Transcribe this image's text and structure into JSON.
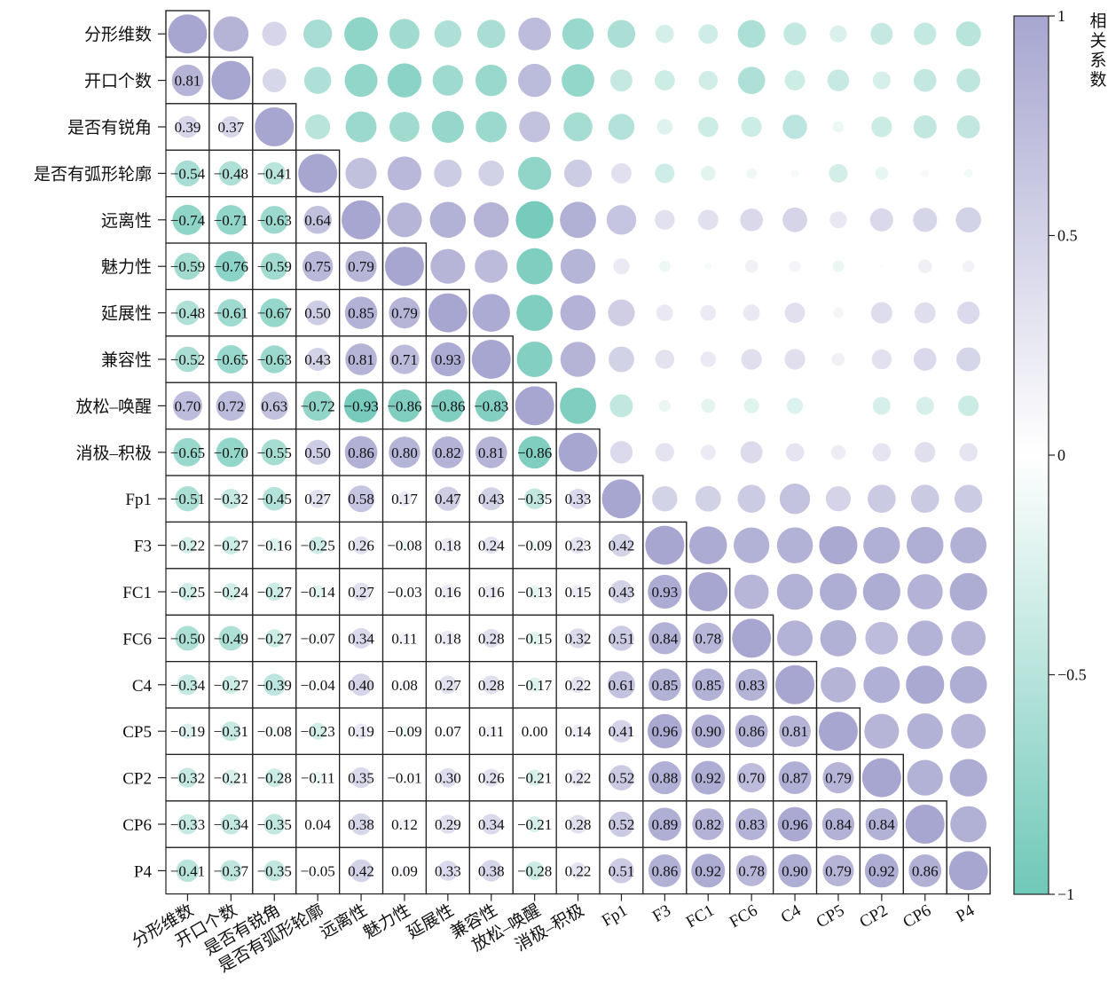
{
  "chart_data": {
    "type": "heatmap",
    "variables": [
      "分形维数",
      "开口个数",
      "是否有锐角",
      "是否有弧形轮廓",
      "远离性",
      "魅力性",
      "延展性",
      "兼容性",
      "放松–唤醒",
      "消极–积极",
      "Fp1",
      "F3",
      "FC1",
      "FC6",
      "C4",
      "CP5",
      "CP2",
      "CP6",
      "P4"
    ],
    "lower_labels": [
      [],
      [
        "0.81"
      ],
      [
        "0.39",
        "0.37"
      ],
      [
        "−0.54",
        "−0.48",
        "−0.41"
      ],
      [
        "−0.74",
        "−0.71",
        "−0.63",
        "0.64"
      ],
      [
        "−0.59",
        "−0.76",
        "−0.59",
        "0.75",
        "0.79"
      ],
      [
        "−0.48",
        "−0.61",
        "−0.67",
        "0.50",
        "0.85",
        "0.79"
      ],
      [
        "−0.52",
        "−0.65",
        "−0.63",
        "0.43",
        "0.81",
        "0.71",
        "0.93"
      ],
      [
        "0.70",
        "0.72",
        "0.63",
        "−0.72",
        "−0.93",
        "−0.86",
        "−0.86",
        "−0.83"
      ],
      [
        "−0.65",
        "−0.70",
        "−0.55",
        "0.50",
        "0.86",
        "0.80",
        "0.82",
        "0.81",
        "−0.86"
      ],
      [
        "−0.51",
        "−0.32",
        "−0.45",
        "0.27",
        "0.58",
        "0.17",
        "0.47",
        "0.43",
        "−0.35",
        "0.33"
      ],
      [
        "−0.22",
        "−0.27",
        "−0.16",
        "−0.25",
        "0.26",
        "−0.08",
        "0.18",
        "0.24",
        "−0.09",
        "0.23",
        "0.42"
      ],
      [
        "−0.25",
        "−0.24",
        "−0.27",
        "−0.14",
        "0.27",
        "−0.03",
        "0.16",
        "0.16",
        "−0.13",
        "0.15",
        "0.43",
        "0.93"
      ],
      [
        "−0.50",
        "−0.49",
        "−0.27",
        "−0.07",
        "0.34",
        "0.11",
        "0.18",
        "0.28",
        "−0.15",
        "0.32",
        "0.51",
        "0.84",
        "0.78"
      ],
      [
        "−0.34",
        "−0.27",
        "−0.39",
        "−0.04",
        "0.40",
        "0.08",
        "0.27",
        "0.28",
        "−0.17",
        "0.22",
        "0.61",
        "0.85",
        "0.85",
        "0.83"
      ],
      [
        "−0.19",
        "−0.31",
        "−0.08",
        "−0.23",
        "0.19",
        "−0.09",
        "0.07",
        "0.11",
        "0.00",
        "0.14",
        "0.41",
        "0.96",
        "0.90",
        "0.86",
        "0.81"
      ],
      [
        "−0.32",
        "−0.21",
        "−0.28",
        "−0.11",
        "0.35",
        "−0.01",
        "0.30",
        "0.26",
        "−0.21",
        "0.22",
        "0.52",
        "0.88",
        "0.92",
        "0.70",
        "0.87",
        "0.79"
      ],
      [
        "−0.33",
        "−0.34",
        "−0.35",
        "0.04",
        "0.38",
        "0.12",
        "0.29",
        "0.34",
        "−0.21",
        "0.28",
        "0.52",
        "0.89",
        "0.82",
        "0.83",
        "0.96",
        "0.84",
        "0.84"
      ],
      [
        "−0.41",
        "−0.37",
        "−0.35",
        "−0.05",
        "0.42",
        "0.09",
        "0.33",
        "0.38",
        "−0.28",
        "0.22",
        "0.51",
        "0.86",
        "0.92",
        "0.78",
        "0.90",
        "0.79",
        "0.92",
        "0.86"
      ]
    ],
    "colorbar": {
      "title": "相关系数",
      "range": [
        -1,
        1
      ],
      "ticks": [
        "1",
        "0.5",
        "0",
        "−0.5",
        "−1"
      ],
      "tick_values": [
        1,
        0.5,
        0,
        -0.5,
        -1
      ],
      "colors": {
        "positive": "#a7a6d0",
        "zero": "#ffffff",
        "negative": "#6fc8b8"
      }
    }
  }
}
